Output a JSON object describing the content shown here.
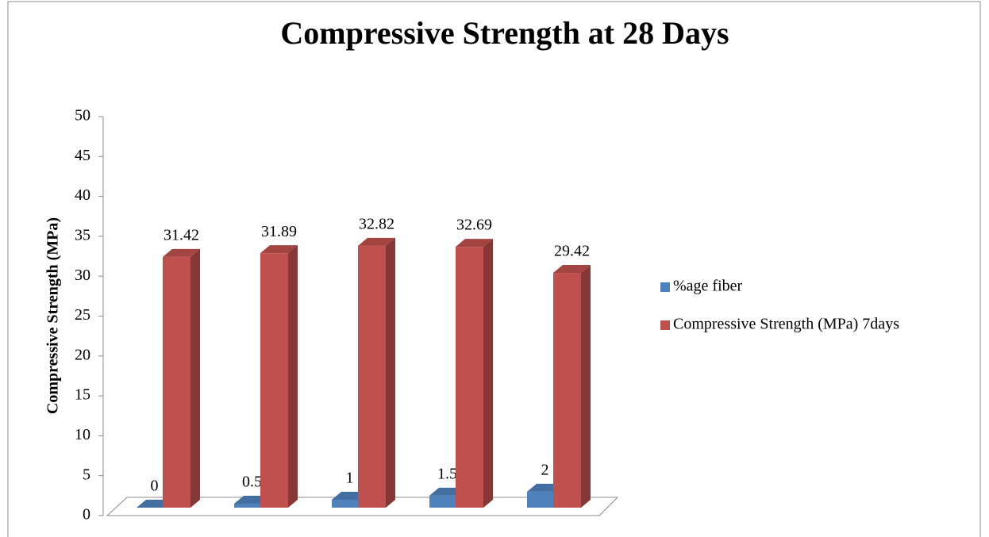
{
  "chart_data": {
    "type": "bar3d",
    "title": "Compressive Strength at 28 Days",
    "y_label": "Compressive Strength (MPa)",
    "categories": [
      null,
      null,
      null,
      null,
      null
    ],
    "series": [
      {
        "name": "%age fiber",
        "color": "#4f81bd",
        "values": [
          0,
          0.5,
          1,
          1.5,
          2
        ]
      },
      {
        "name": "Compressive Strength (MPa) 7days",
        "color": "#c0504d",
        "values": [
          31.42,
          31.89,
          32.82,
          32.69,
          29.42
        ]
      }
    ],
    "ylim": [
      0,
      50
    ],
    "yticks": [
      0,
      5,
      10,
      15,
      20,
      25,
      30,
      35,
      40,
      45,
      50
    ],
    "legend": "right",
    "grid": false
  }
}
